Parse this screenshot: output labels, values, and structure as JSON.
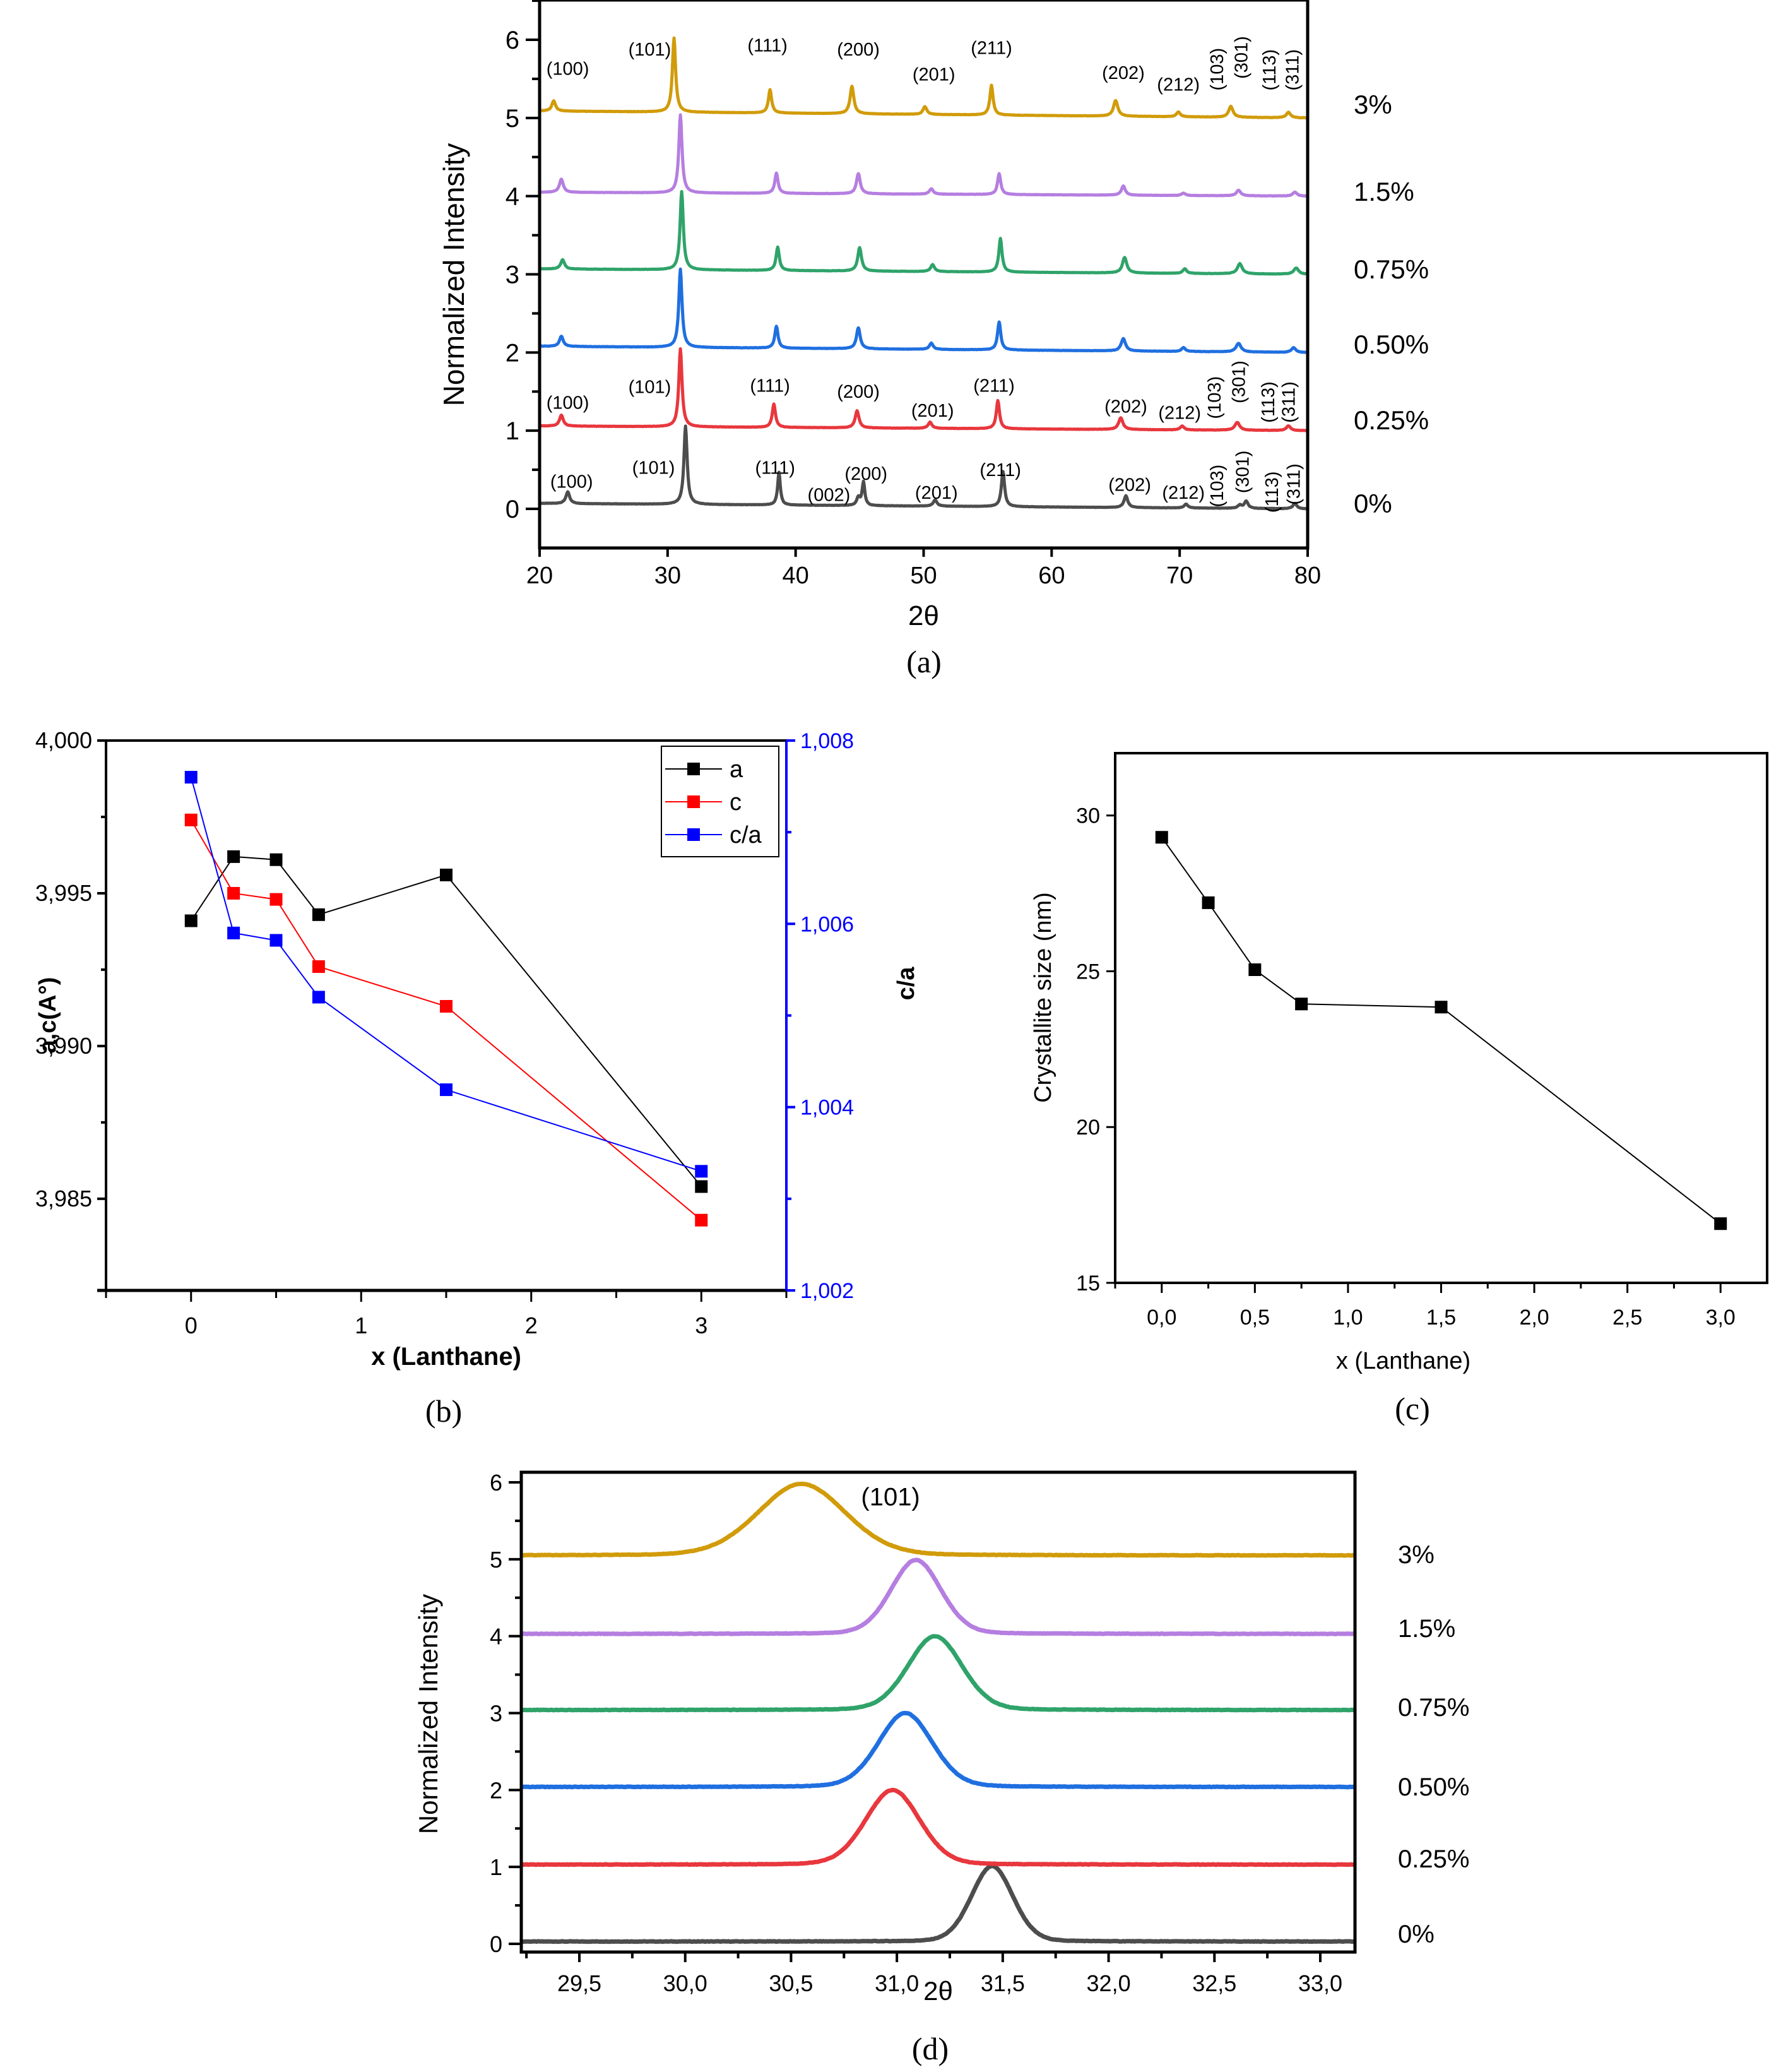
{
  "figure": {
    "panel_labels": [
      "(a)",
      "(b)",
      "(c)",
      "(d)"
    ]
  },
  "chart_data": [
    {
      "id": "a",
      "type": "line",
      "title": "",
      "panel_label": "(a)",
      "xlabel": "2θ",
      "ylabel": "Normalized Intensity",
      "xlim": [
        20,
        80
      ],
      "ylim": [
        -0.5,
        6.5
      ],
      "xticks": [
        20,
        30,
        40,
        50,
        60,
        70,
        80
      ],
      "yticks": [
        0,
        1,
        2,
        3,
        4,
        5,
        6
      ],
      "grid": false,
      "series": [
        {
          "name": "0%",
          "offset": 0,
          "color": "#4d4d4d",
          "peaks": [
            [
              22.2,
              0.15,
              0.35
            ],
            [
              31.4,
              1.0,
              0.3
            ],
            [
              38.7,
              0.42,
              0.25
            ],
            [
              44.9,
              0.1,
              0.3
            ],
            [
              45.3,
              0.3,
              0.25
            ],
            [
              50.9,
              0.08,
              0.35
            ],
            [
              56.2,
              0.45,
              0.3
            ],
            [
              65.8,
              0.15,
              0.35
            ],
            [
              70.5,
              0.05,
              0.35
            ],
            [
              74.7,
              0.04,
              0.35
            ],
            [
              75.2,
              0.09,
              0.35
            ],
            [
              79.0,
              0.07,
              0.35
            ]
          ],
          "baseline_start": 0.07
        },
        {
          "name": "0.25%",
          "offset": 1,
          "color": "#e8373d",
          "peaks": [
            [
              21.7,
              0.14,
              0.35
            ],
            [
              31.0,
              1.0,
              0.3
            ],
            [
              38.3,
              0.3,
              0.3
            ],
            [
              44.8,
              0.22,
              0.35
            ],
            [
              50.5,
              0.08,
              0.35
            ],
            [
              55.8,
              0.36,
              0.3
            ],
            [
              65.4,
              0.15,
              0.4
            ],
            [
              70.2,
              0.05,
              0.35
            ],
            [
              74.5,
              0.1,
              0.45
            ],
            [
              78.5,
              0.06,
              0.4
            ]
          ],
          "baseline_start": 0.06
        },
        {
          "name": "0.50%",
          "offset": 2,
          "color": "#1f6fe0",
          "peaks": [
            [
              21.7,
              0.13,
              0.35
            ],
            [
              31.0,
              1.0,
              0.3
            ],
            [
              38.5,
              0.28,
              0.3
            ],
            [
              44.9,
              0.27,
              0.35
            ],
            [
              50.6,
              0.08,
              0.35
            ],
            [
              55.9,
              0.36,
              0.3
            ],
            [
              65.6,
              0.16,
              0.4
            ],
            [
              70.3,
              0.05,
              0.35
            ],
            [
              74.6,
              0.11,
              0.45
            ],
            [
              78.9,
              0.06,
              0.4
            ]
          ],
          "baseline_start": 0.08
        },
        {
          "name": "0.75%",
          "offset": 3,
          "color": "#2fa36a",
          "peaks": [
            [
              21.8,
              0.12,
              0.35
            ],
            [
              31.1,
              1.0,
              0.3
            ],
            [
              38.6,
              0.3,
              0.3
            ],
            [
              45.0,
              0.3,
              0.35
            ],
            [
              50.7,
              0.09,
              0.35
            ],
            [
              56.0,
              0.43,
              0.3
            ],
            [
              65.7,
              0.2,
              0.4
            ],
            [
              70.4,
              0.06,
              0.35
            ],
            [
              74.7,
              0.13,
              0.45
            ],
            [
              79.1,
              0.08,
              0.45
            ]
          ],
          "baseline_start": 0.07
        },
        {
          "name": "1.5%",
          "offset": 4,
          "color": "#b57ee0",
          "peaks": [
            [
              21.7,
              0.17,
              0.35
            ],
            [
              31.0,
              1.0,
              0.3
            ],
            [
              38.5,
              0.26,
              0.3
            ],
            [
              44.9,
              0.26,
              0.35
            ],
            [
              50.6,
              0.07,
              0.35
            ],
            [
              55.9,
              0.27,
              0.3
            ],
            [
              65.6,
              0.12,
              0.35
            ],
            [
              70.3,
              0.03,
              0.35
            ],
            [
              74.6,
              0.07,
              0.4
            ],
            [
              79.0,
              0.05,
              0.4
            ]
          ],
          "baseline_start": 0.05
        },
        {
          "name": "3%",
          "offset": 5,
          "color": "#d19b0a",
          "peaks": [
            [
              21.1,
              0.13,
              0.35
            ],
            [
              30.5,
              0.95,
              0.3
            ],
            [
              38.0,
              0.3,
              0.3
            ],
            [
              44.4,
              0.35,
              0.35
            ],
            [
              50.1,
              0.1,
              0.35
            ],
            [
              55.3,
              0.38,
              0.3
            ],
            [
              65.0,
              0.2,
              0.4
            ],
            [
              69.9,
              0.06,
              0.35
            ],
            [
              74.0,
              0.14,
              0.4
            ],
            [
              78.5,
              0.07,
              0.4
            ]
          ],
          "baseline_start": 0.09
        }
      ],
      "annotations": [
        {
          "series": "3%",
          "labels": [
            {
              "text": "(100)",
              "x": 22.2,
              "y": 5.55,
              "rotate": false
            },
            {
              "text": "(101)",
              "x": 28.6,
              "y": 5.8,
              "rotate": false
            },
            {
              "text": "(111)",
              "x": 37.8,
              "y": 5.85,
              "rotate": false
            },
            {
              "text": "(200)",
              "x": 44.9,
              "y": 5.8,
              "rotate": false
            },
            {
              "text": "(201)",
              "x": 50.8,
              "y": 5.48,
              "rotate": false
            },
            {
              "text": "(211)",
              "x": 55.3,
              "y": 5.82,
              "rotate": false
            },
            {
              "text": "(202)",
              "x": 65.6,
              "y": 5.5,
              "rotate": false
            },
            {
              "text": "(212)",
              "x": 69.9,
              "y": 5.35,
              "rotate": false
            },
            {
              "text": "(103)",
              "x": 72.9,
              "y": 5.35,
              "rotate": true
            },
            {
              "text": "(301)",
              "x": 74.8,
              "y": 5.5,
              "rotate": true
            },
            {
              "text": "(113)",
              "x": 77.0,
              "y": 5.35,
              "rotate": true
            },
            {
              "text": "(311)",
              "x": 78.8,
              "y": 5.35,
              "rotate": true
            }
          ]
        },
        {
          "series": "0.25%",
          "labels": [
            {
              "text": "(100)",
              "x": 22.2,
              "y": 1.28,
              "rotate": false
            },
            {
              "text": "(101)",
              "x": 28.6,
              "y": 1.48,
              "rotate": false
            },
            {
              "text": "(111)",
              "x": 38.0,
              "y": 1.5,
              "rotate": false
            },
            {
              "text": "(200)",
              "x": 44.9,
              "y": 1.42,
              "rotate": false
            },
            {
              "text": "(201)",
              "x": 50.7,
              "y": 1.18,
              "rotate": false
            },
            {
              "text": "(211)",
              "x": 55.5,
              "y": 1.5,
              "rotate": false
            },
            {
              "text": "(202)",
              "x": 65.8,
              "y": 1.23,
              "rotate": false
            },
            {
              "text": "(212)",
              "x": 70.0,
              "y": 1.15,
              "rotate": false
            },
            {
              "text": "(103)",
              "x": 72.7,
              "y": 1.15,
              "rotate": true
            },
            {
              "text": "(301)",
              "x": 74.6,
              "y": 1.35,
              "rotate": true
            },
            {
              "text": "(113)",
              "x": 76.9,
              "y": 1.1,
              "rotate": true
            },
            {
              "text": "(311)",
              "x": 78.5,
              "y": 1.1,
              "rotate": true
            }
          ]
        },
        {
          "series": "0%",
          "labels": [
            {
              "text": "(100)",
              "x": 22.5,
              "y": 0.27,
              "rotate": false
            },
            {
              "text": "(101)",
              "x": 28.9,
              "y": 0.45,
              "rotate": false
            },
            {
              "text": "(111)",
              "x": 38.4,
              "y": 0.45,
              "rotate": false
            },
            {
              "text": "(002)",
              "x": 42.6,
              "y": 0.1,
              "rotate": false
            },
            {
              "text": "(200)",
              "x": 45.5,
              "y": 0.37,
              "rotate": false
            },
            {
              "text": "(201)",
              "x": 51.0,
              "y": 0.13,
              "rotate": false
            },
            {
              "text": "(211)",
              "x": 56.0,
              "y": 0.42,
              "rotate": false
            },
            {
              "text": "(202)",
              "x": 66.1,
              "y": 0.23,
              "rotate": false
            },
            {
              "text": "(212)",
              "x": 70.3,
              "y": 0.13,
              "rotate": false
            },
            {
              "text": "(103)",
              "x": 72.9,
              "y": 0.02,
              "rotate": true
            },
            {
              "text": "(301)",
              "x": 74.9,
              "y": 0.2,
              "rotate": true
            },
            {
              "text": "(113)",
              "x": 77.2,
              "y": -0.05,
              "rotate": true
            },
            {
              "text": "(311)",
              "x": 78.9,
              "y": 0.05,
              "rotate": true
            }
          ]
        }
      ],
      "right_labels": [
        "3%",
        "1.5%",
        "0.75%",
        "0.50%",
        "0.25%",
        "0%"
      ]
    },
    {
      "id": "b",
      "type": "line",
      "title": "",
      "panel_label": "(b)",
      "xlabel": "x (Lanthane)",
      "ylabel": "a,c(A°)",
      "ylabel_right": "c/a",
      "xlim": [
        -0.5,
        3.5
      ],
      "ylim": [
        3.982,
        4.0
      ],
      "ylim_right": [
        1.002,
        1.008
      ],
      "xticks": [
        0,
        1,
        2,
        3
      ],
      "xticks_minor": [
        -0.5,
        0.5,
        1.5,
        2.5,
        3.5
      ],
      "yticks": [
        3.985,
        3.99,
        3.995,
        4.0
      ],
      "ytick_labels": [
        "3,985",
        "3,990",
        "3,995",
        "4,000"
      ],
      "yticks_minor": [
        3.9875,
        3.9925,
        3.9975
      ],
      "yticks_right": [
        1.002,
        1.004,
        1.006,
        1.008
      ],
      "ytick_labels_right": [
        "1,002",
        "1,004",
        "1,006",
        "1,008"
      ],
      "yticks_right_minor": [
        1.003,
        1.005,
        1.007
      ],
      "legend": {
        "placement": "top-right",
        "entries": [
          "a",
          "c",
          "c/a"
        ]
      },
      "grid": false,
      "x": [
        0,
        0.25,
        0.5,
        0.75,
        1.5,
        3
      ],
      "series": [
        {
          "name": "a",
          "axis": "left",
          "color": "#000000",
          "values": [
            3.9941,
            3.9962,
            3.9961,
            3.9943,
            3.9956,
            3.9854
          ]
        },
        {
          "name": "c",
          "axis": "left",
          "color": "#ff0000",
          "values": [
            3.9974,
            3.995,
            3.9948,
            3.9926,
            3.9913,
            3.9843
          ]
        },
        {
          "name": "c/a",
          "axis": "right",
          "color": "#0000ff",
          "values": [
            1.0076,
            1.0059,
            1.00582,
            1.0052,
            1.00419,
            1.0033
          ]
        }
      ]
    },
    {
      "id": "c",
      "type": "line",
      "title": "",
      "panel_label": "(c)",
      "xlabel": "x (Lanthane)",
      "ylabel": "Crystallite size (nm)",
      "xlim": [
        -0.25,
        3.25
      ],
      "ylim": [
        15,
        32
      ],
      "xticks": [
        0.0,
        0.5,
        1.0,
        1.5,
        2.0,
        2.5,
        3.0
      ],
      "xtick_labels": [
        "0,0",
        "0,5",
        "1,0",
        "1,5",
        "2,0",
        "2,5",
        "3,0"
      ],
      "xticks_minor": [
        -0.25,
        0.25,
        0.75,
        1.25,
        1.75,
        2.25,
        2.75
      ],
      "yticks": [
        15,
        20,
        25,
        30
      ],
      "ytick_labels": [
        "15",
        "20",
        "25",
        "30"
      ],
      "grid": false,
      "x": [
        0,
        0.25,
        0.5,
        0.75,
        1.5,
        3
      ],
      "values": [
        29.3,
        27.2,
        25.05,
        23.95,
        23.85,
        16.9
      ],
      "color": "#000000"
    },
    {
      "id": "d",
      "type": "line",
      "title": "",
      "panel_label": "(d)",
      "xlabel": "2θ",
      "ylabel": "Normalized Intensity",
      "xlim": [
        29.22,
        33.16
      ],
      "ylim": [
        -0.1,
        6.13
      ],
      "xticks": [
        29.5,
        30.0,
        30.5,
        31.0,
        31.5,
        32.0,
        32.5,
        33.0
      ],
      "xtick_labels": [
        "29,5",
        "30,0",
        "30,5",
        "31,0",
        "31,5",
        "32,0",
        "32,5",
        "33,0"
      ],
      "xticks_minor": [
        29.25,
        29.75,
        30.25,
        30.75,
        31.25,
        31.75,
        32.25,
        32.75
      ],
      "yticks": [
        0,
        1,
        2,
        3,
        4,
        5,
        6
      ],
      "grid": false,
      "annotation": {
        "text": "(101)",
        "x": 30.97,
        "y": 5.7
      },
      "series": [
        {
          "name": "0%",
          "offset": 0,
          "color": "#4d4d4d",
          "peak_x": 31.45,
          "peak_h": 0.98,
          "width": 0.1,
          "baseline": 0.03
        },
        {
          "name": "0.25%",
          "offset": 1,
          "color": "#e8373d",
          "peak_x": 30.98,
          "peak_h": 0.97,
          "width": 0.13,
          "baseline": 0.03
        },
        {
          "name": "0.50%",
          "offset": 2,
          "color": "#1f6fe0",
          "peak_x": 31.04,
          "peak_h": 0.96,
          "width": 0.13,
          "baseline": 0.04
        },
        {
          "name": "0.75%",
          "offset": 3,
          "color": "#2fa36a",
          "peak_x": 31.18,
          "peak_h": 0.96,
          "width": 0.13,
          "baseline": 0.04
        },
        {
          "name": "1.5%",
          "offset": 4,
          "color": "#b57ee0",
          "peak_x": 31.09,
          "peak_h": 0.96,
          "width": 0.12,
          "baseline": 0.03
        },
        {
          "name": "3%",
          "offset": 5,
          "color": "#d19b0a",
          "peak_x": 30.55,
          "peak_h": 0.93,
          "width": 0.21,
          "baseline": 0.05
        }
      ],
      "right_labels": [
        "3%",
        "1.5%",
        "0.75%",
        "0.50%",
        "0.25%",
        "0%"
      ]
    }
  ]
}
